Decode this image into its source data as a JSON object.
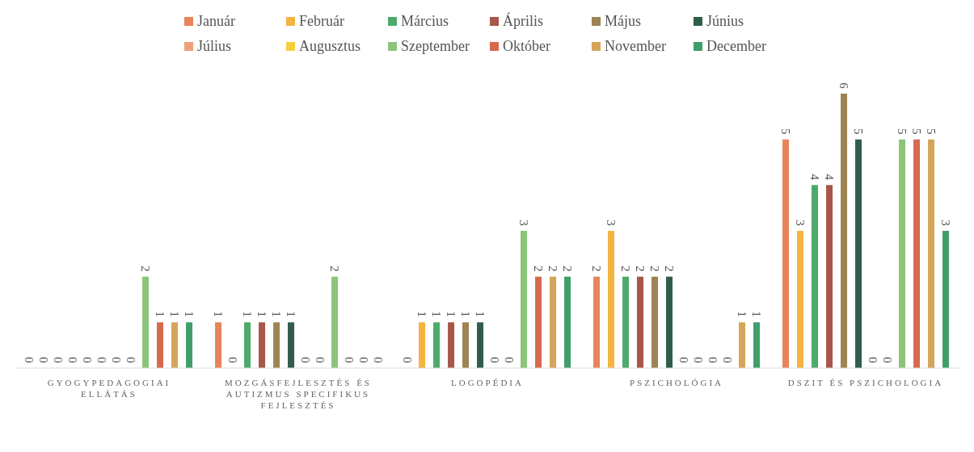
{
  "chart_data": {
    "type": "bar",
    "categories": [
      "GYOGYPEDAGOGIAI ELLÁTÁS",
      "MOZGÁSFEJLESZTÉS ÉS AUTIZMUS SPECIFIKUS FEJLESZTÉS",
      "LOGOPÉDIA",
      "PSZICHOLÓGIA",
      "DSZIT ÉS PSZICHOLOGIA"
    ],
    "series": [
      {
        "name": "Január",
        "color": "#e8845a",
        "values": [
          0,
          1,
          0,
          2,
          5
        ]
      },
      {
        "name": "Február",
        "color": "#f4b440",
        "values": [
          0,
          0,
          1,
          3,
          3
        ]
      },
      {
        "name": "Március",
        "color": "#4daa6a",
        "values": [
          0,
          1,
          1,
          2,
          4
        ]
      },
      {
        "name": "Április",
        "color": "#a8564a",
        "values": [
          0,
          1,
          1,
          2,
          4
        ]
      },
      {
        "name": "Május",
        "color": "#9e8454",
        "values": [
          0,
          1,
          1,
          2,
          6
        ]
      },
      {
        "name": "Június",
        "color": "#2f5e4a",
        "values": [
          0,
          1,
          1,
          2,
          5
        ]
      },
      {
        "name": "Július",
        "color": "#eea07a",
        "values": [
          0,
          0,
          0,
          0,
          0
        ]
      },
      {
        "name": "Augusztus",
        "color": "#f4d040",
        "values": [
          0,
          0,
          0,
          0,
          0
        ]
      },
      {
        "name": "Szeptember",
        "color": "#8cc47a",
        "values": [
          2,
          2,
          3,
          0,
          5
        ]
      },
      {
        "name": "Október",
        "color": "#d8684e",
        "values": [
          1,
          0,
          2,
          0,
          5
        ]
      },
      {
        "name": "November",
        "color": "#d4a55a",
        "values": [
          1,
          0,
          2,
          1,
          5
        ]
      },
      {
        "name": "December",
        "color": "#3f9e6a",
        "values": [
          1,
          0,
          2,
          1,
          3
        ]
      }
    ],
    "data_labels": true,
    "legend": "top",
    "grid": false
  }
}
